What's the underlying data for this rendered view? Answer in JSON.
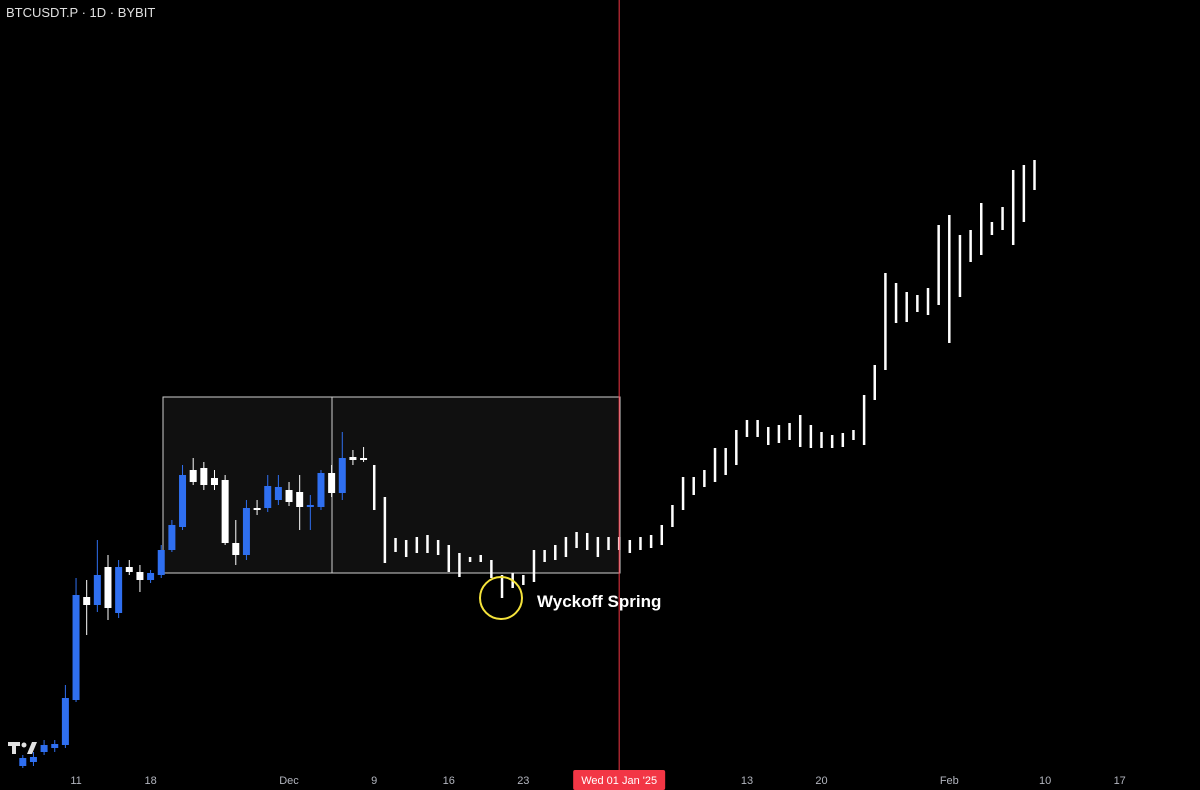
{
  "chart_data": {
    "type": "candlestick",
    "title": "BTCUSDT.P · 1D · BYBIT",
    "annotation": "Wyckoff Spring",
    "xlim": [
      -7.14,
      105.54
    ],
    "ylim": [
      78400,
      140000
    ],
    "xticks": [
      {
        "value": 0,
        "label": "11"
      },
      {
        "value": 7,
        "label": "18"
      },
      {
        "value": 20,
        "label": "Dec"
      },
      {
        "value": 28,
        "label": "9"
      },
      {
        "value": 35,
        "label": "16"
      },
      {
        "value": 42,
        "label": "23"
      },
      {
        "value": 63,
        "label": "13"
      },
      {
        "value": 70,
        "label": "20"
      },
      {
        "value": 82,
        "label": "Feb"
      },
      {
        "value": 91,
        "label": "10"
      },
      {
        "value": 98,
        "label": "17"
      }
    ],
    "crosshair": {
      "value": 51,
      "label": "Wed 01 Jan '25",
      "color": "#f23645"
    },
    "series": [
      {
        "type": "candlestick",
        "up_color": "#2f6ff0",
        "down_color": "#ffffff",
        "x": [
          -5,
          -4,
          -3,
          -2,
          -1,
          0,
          1,
          2,
          3,
          4,
          5,
          6,
          7,
          8,
          9,
          10,
          11,
          12,
          13,
          14,
          15,
          16,
          17,
          18,
          19,
          20,
          21,
          22,
          23,
          24,
          25,
          26,
          27
        ],
        "open": [
          78720,
          79040,
          79840,
          80160,
          80400,
          84000,
          92240,
          91600,
          94640,
          90960,
          94640,
          94240,
          93600,
          94000,
          96000,
          97840,
          102400,
          102560,
          101760,
          101600,
          96560,
          95600,
          99360,
          99360,
          100000,
          100800,
          100640,
          99440,
          99440,
          102160,
          100560,
          103440,
          103360
        ],
        "high": [
          79600,
          79840,
          80800,
          80800,
          85200,
          93760,
          93600,
          96800,
          95600,
          95200,
          95200,
          94800,
          94400,
          96400,
          98400,
          102800,
          103360,
          103040,
          102400,
          102000,
          98400,
          100000,
          100000,
          102000,
          102000,
          101440,
          102000,
          100400,
          102400,
          102800,
          105440,
          104000,
          104240
        ],
        "low": [
          78560,
          78720,
          79600,
          79840,
          80160,
          83840,
          89200,
          91040,
          90400,
          90560,
          94000,
          92640,
          93360,
          93760,
          95840,
          97600,
          101200,
          100800,
          100800,
          96400,
          94800,
          95200,
          98800,
          99040,
          99600,
          99520,
          97600,
          97600,
          99200,
          100240,
          100000,
          102800,
          103040
        ],
        "close": [
          79360,
          79440,
          80400,
          80480,
          84160,
          92400,
          91600,
          94000,
          91360,
          94640,
          94240,
          93600,
          94160,
          96000,
          98000,
          102000,
          101440,
          101200,
          101200,
          96560,
          95600,
          99360,
          99200,
          101120,
          101040,
          99840,
          99440,
          99600,
          102160,
          100560,
          103360,
          103200,
          103200
        ]
      },
      {
        "type": "range",
        "color": "#ffffff",
        "x": [
          28,
          29,
          30,
          31,
          32,
          33,
          34,
          35,
          36,
          37,
          38,
          39,
          40,
          41,
          42,
          43,
          44,
          45,
          46,
          47,
          48,
          49,
          50,
          51,
          52,
          53,
          54,
          55,
          56,
          57,
          58,
          59,
          60,
          61,
          62,
          63,
          64,
          65,
          66,
          67,
          68,
          69,
          70,
          71,
          72,
          73,
          74,
          75,
          76,
          77,
          78,
          79,
          80,
          81,
          82,
          83,
          84,
          85,
          86,
          87,
          88,
          89,
          90
        ],
        "high": [
          102800,
          100240,
          96960,
          96800,
          97040,
          97200,
          96800,
          96400,
          95760,
          95440,
          95600,
          95200,
          94000,
          94160,
          94000,
          96000,
          96000,
          96400,
          97040,
          97440,
          97360,
          97040,
          97040,
          97040,
          96800,
          97040,
          97200,
          98000,
          99600,
          101840,
          101840,
          102400,
          104160,
          104160,
          105600,
          106400,
          106400,
          105840,
          106000,
          106160,
          106800,
          106000,
          105440,
          105200,
          105360,
          105600,
          108400,
          110800,
          118160,
          117360,
          116640,
          116400,
          116960,
          122000,
          122800,
          121200,
          121600,
          123760,
          122240,
          123440,
          126400,
          126800,
          127200
        ],
        "low": [
          99200,
          94960,
          95840,
          95440,
          95760,
          95760,
          95600,
          94240,
          93840,
          95040,
          95040,
          93760,
          92160,
          92960,
          93200,
          93440,
          95040,
          95200,
          95440,
          96160,
          96000,
          95440,
          96000,
          96000,
          95760,
          96000,
          96160,
          96400,
          97840,
          99200,
          100400,
          101040,
          101440,
          102000,
          102800,
          105040,
          105040,
          104400,
          104560,
          104800,
          104240,
          104160,
          104160,
          104160,
          104240,
          104800,
          104400,
          108000,
          110400,
          114160,
          114240,
          115040,
          114800,
          115600,
          112560,
          116240,
          119040,
          119600,
          121200,
          121600,
          120400,
          122240,
          124800
        ]
      }
    ]
  }
}
